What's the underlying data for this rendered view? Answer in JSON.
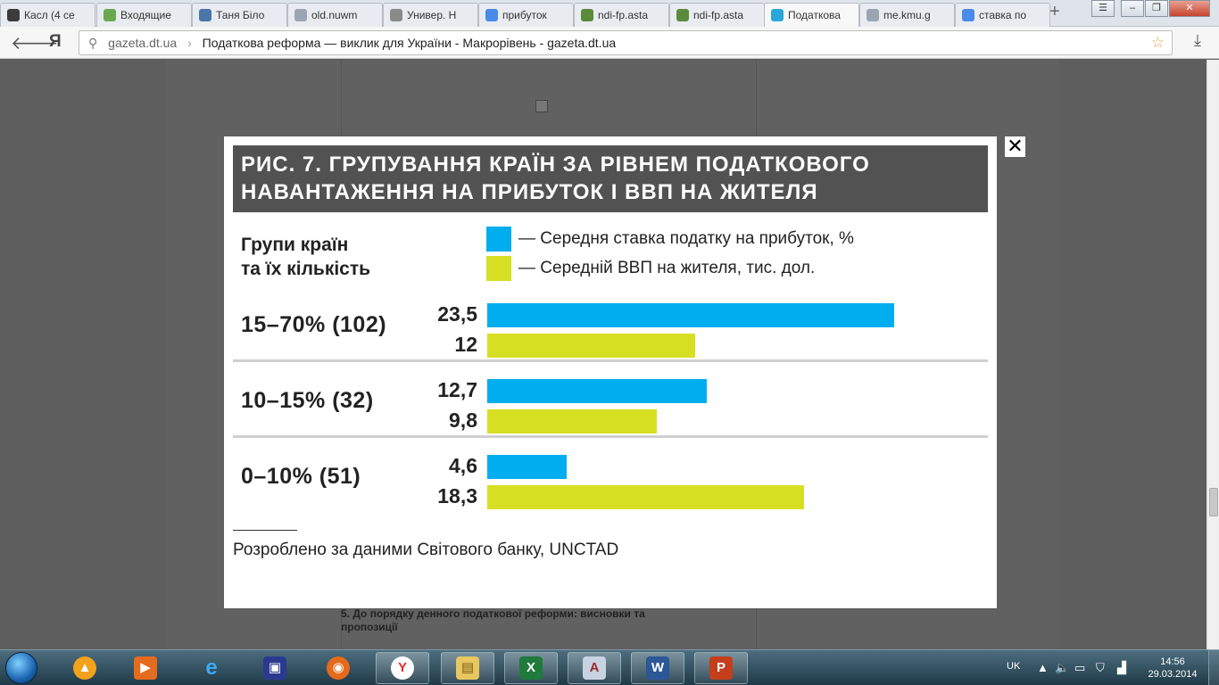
{
  "tabs": [
    {
      "label": "Касл (4 се",
      "icon": "avatar-icon",
      "color": "#3b3b3b"
    },
    {
      "label": "Входящие",
      "icon": "f-icon",
      "color": "#6aa84f"
    },
    {
      "label": "Таня Біло",
      "icon": "vk-icon",
      "color": "#4a76a8"
    },
    {
      "label": "old.nuwm",
      "icon": "page-icon",
      "color": "#9aa5b1"
    },
    {
      "label": "Универ. Н",
      "icon": "ex-icon",
      "color": "#8a8a8a"
    },
    {
      "label": "прибуток",
      "icon": "google-icon",
      "color": "#4a8ae8"
    },
    {
      "label": "ndi-fp.asta",
      "icon": "emblem-icon",
      "color": "#5b8a3c"
    },
    {
      "label": "ndi-fp.asta",
      "icon": "emblem-icon",
      "color": "#5b8a3c"
    },
    {
      "label": "Податкова",
      "icon": "dt-icon",
      "color": "#2aa7d8",
      "active": true
    },
    {
      "label": "me.kmu.g",
      "icon": "page-icon",
      "color": "#9aa5b1"
    },
    {
      "label": "ставка по",
      "icon": "google-icon",
      "color": "#4a8ae8"
    }
  ],
  "address": {
    "host": "gazeta.dt.ua",
    "separator": "›",
    "title": "Податкова реформа — виклик для України - Макрорівень - gazeta.dt.ua"
  },
  "browser_logo": "Я",
  "figure": {
    "title_line1": "РИС. 7. ГРУПУВАННЯ КРАЇН ЗА РІВНЕМ ПОДАТКОВОГО",
    "title_line2": "НАВАНТАЖЕННЯ НА ПРИБУТОК І ВВП НА ЖИТЕЛЯ",
    "group_header_line1": "Групи країн",
    "group_header_line2": "та їх кількість",
    "source": "Розроблено за даними Світового банку, UNCTAD"
  },
  "chart_data": {
    "type": "bar",
    "orientation": "horizontal",
    "categories": [
      "15–70% (102)",
      "10–15% (32)",
      "0–10% (51)"
    ],
    "series": [
      {
        "name": "— Середня ставка податку на прибуток, %",
        "values": [
          23.5,
          12.7,
          4.6
        ],
        "labels": [
          "23,5",
          "12,7",
          "4,6"
        ],
        "color": "#00adef"
      },
      {
        "name": "— Середній ВВП на жителя, тис. дол.",
        "values": [
          12,
          9.8,
          18.3
        ],
        "labels": [
          "12",
          "9,8",
          "18,3"
        ],
        "color": "#d7df23"
      }
    ],
    "xlim": [
      0,
      23.5
    ],
    "grid": false,
    "legend": "top"
  },
  "footnote": "5. До порядку денного податкової реформи: висновки та пропозиції",
  "tray": {
    "lang": "UK",
    "time": "14:56",
    "date": "29.03.2014"
  }
}
